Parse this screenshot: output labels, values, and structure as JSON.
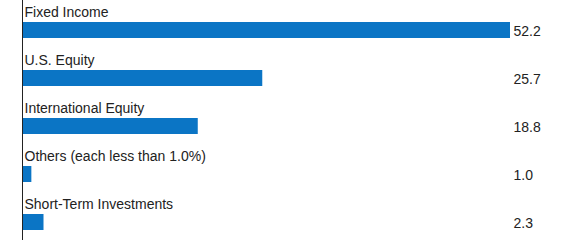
{
  "chart_data": {
    "type": "bar",
    "orientation": "horizontal",
    "categories": [
      "Fixed Income",
      "U.S. Equity",
      "International Equity",
      "Others (each less than 1.0%)",
      "Short-Term Investments"
    ],
    "values": [
      52.2,
      25.7,
      18.8,
      1.0,
      2.3
    ],
    "value_labels": [
      "52.2",
      "25.7",
      "18.8",
      "1.0",
      "2.3"
    ],
    "color": "#0b75c5",
    "xlim": [
      0,
      52.2
    ],
    "data_labels": true,
    "tick_labels": false
  }
}
